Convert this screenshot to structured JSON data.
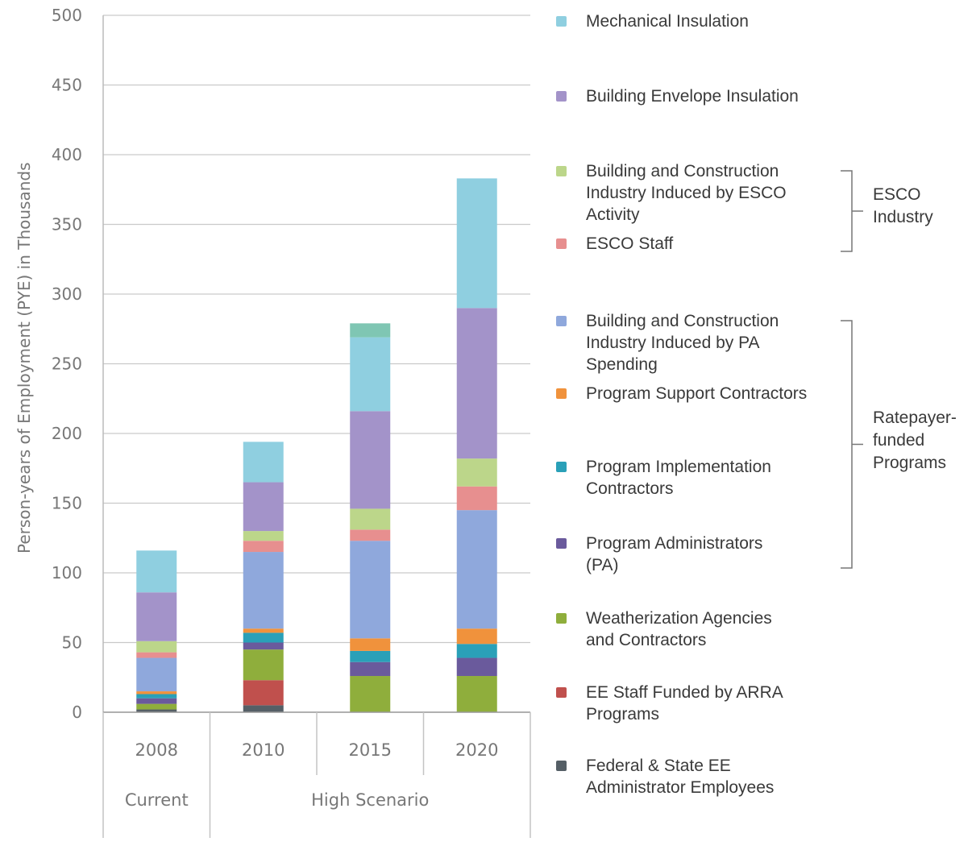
{
  "chart_data": {
    "type": "bar",
    "stacked": true,
    "ylabel": "Person-years of Employment (PYE) in Thousands",
    "ylim": [
      0,
      500
    ],
    "yticks": [
      "0",
      "50",
      "100",
      "150",
      "200",
      "250",
      "300",
      "350",
      "400",
      "450",
      "500"
    ],
    "categories": [
      "2008",
      "2010",
      "2015",
      "2020"
    ],
    "groups": [
      {
        "label": "Current",
        "categories": [
          "2008"
        ]
      },
      {
        "label": "High Scenario",
        "categories": [
          "2010",
          "2015",
          "2020"
        ]
      }
    ],
    "grid": true,
    "legend_position": "right",
    "series": [
      {
        "name": "Federal & State EE Administrator Employees",
        "color": "#555f66",
        "values": [
          2,
          5,
          0,
          0
        ]
      },
      {
        "name": "EE Staff Funded by ARRA Programs",
        "color": "#c0504d",
        "values": [
          0,
          18,
          0,
          0
        ]
      },
      {
        "name": "Weatherization Agencies and Contractors",
        "color": "#8fae3c",
        "values": [
          4,
          22,
          26,
          26
        ]
      },
      {
        "name": "Program Administrators (PA)",
        "color": "#6a5a9c",
        "values": [
          4,
          5,
          10,
          13
        ]
      },
      {
        "name": "Program Implementation Contractors",
        "color": "#2aa0b8",
        "values": [
          3,
          7,
          8,
          10
        ]
      },
      {
        "name": "Program Support Contractors",
        "color": "#f0923c",
        "values": [
          2,
          3,
          9,
          11
        ]
      },
      {
        "name": "Building and Construction Industry Induced by PA Spending",
        "color": "#8fa8dc",
        "values": [
          24,
          55,
          70,
          85
        ]
      },
      {
        "name": "ESCO Staff",
        "color": "#e78f8f",
        "values": [
          4,
          8,
          8,
          17
        ]
      },
      {
        "name": "Building and Construction Industry Induced by ESCO Activity",
        "color": "#bcd68a",
        "values": [
          8,
          7,
          15,
          20
        ]
      },
      {
        "name": "Building Envelope Insulation",
        "color": "#a393c9",
        "values": [
          35,
          35,
          70,
          108
        ]
      },
      {
        "name": "Mechanical Insulation",
        "color": "#8fcfe0",
        "values": [
          30,
          29,
          53,
          93
        ]
      },
      {
        "name": "",
        "color": "#7fc6b3",
        "values": [
          0,
          0,
          10,
          0
        ]
      }
    ]
  },
  "legend": [
    {
      "label": "Mechanical Insulation",
      "color": "#8fcfe0"
    },
    {
      "label": "Building Envelope Insulation",
      "color": "#a393c9"
    },
    {
      "label": "Building and Construction\nIndustry Induced by ESCO\nActivity",
      "color": "#bcd68a"
    },
    {
      "label": "ESCO Staff",
      "color": "#e78f8f"
    },
    {
      "label": "Building and Construction\nIndustry Induced by PA\nSpending",
      "color": "#8fa8dc"
    },
    {
      "label": "Program Support Contractors",
      "color": "#f0923c"
    },
    {
      "label": "Program Implementation\nContractors",
      "color": "#2aa0b8"
    },
    {
      "label": "Program Administrators\n(PA)",
      "color": "#6a5a9c"
    },
    {
      "label": "Weatherization Agencies\nand Contractors",
      "color": "#8fae3c"
    },
    {
      "label": "EE Staff Funded by ARRA\nPrograms",
      "color": "#c0504d"
    },
    {
      "label": "Federal & State EE\nAdministrator Employees",
      "color": "#555f66"
    }
  ],
  "brackets": [
    {
      "label": "ESCO\nIndustry"
    },
    {
      "label": "Ratepayer-\nfunded\nPrograms"
    }
  ]
}
